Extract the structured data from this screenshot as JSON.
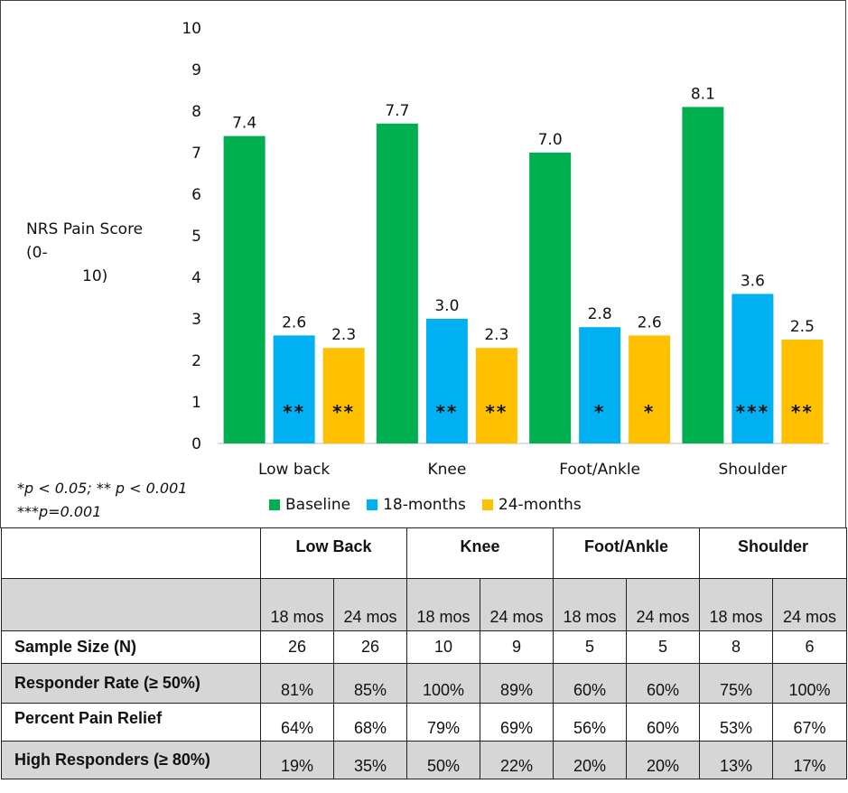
{
  "chart_data": {
    "type": "bar",
    "ylabel": "NRS Pain Score (0-10)",
    "ylabel_lines": [
      "NRS Pain Score (0-",
      "10)"
    ],
    "ylim": [
      0,
      10
    ],
    "yticks": [
      "0",
      "1",
      "2",
      "3",
      "4",
      "5",
      "6",
      "7",
      "8",
      "9",
      "10"
    ],
    "categories": [
      "Low back",
      "Knee",
      "Foot/Ankle",
      "Shoulder"
    ],
    "series": [
      {
        "name": "Baseline",
        "color": "#00b050",
        "values": [
          7.4,
          7.7,
          7.0,
          8.1
        ],
        "labels": [
          "7.4",
          "7.7",
          "7.0",
          "8.1"
        ],
        "markers": [
          "",
          "",
          "",
          ""
        ]
      },
      {
        "name": "18-months",
        "color": "#00b0f0",
        "values": [
          2.6,
          3.0,
          2.8,
          3.6
        ],
        "labels": [
          "2.6",
          "3.0",
          "2.8",
          "3.6"
        ],
        "markers": [
          "**",
          "**",
          "*",
          "***"
        ]
      },
      {
        "name": "24-months",
        "color": "#ffc000",
        "values": [
          2.3,
          2.3,
          2.6,
          2.5
        ],
        "labels": [
          "2.3",
          "2.3",
          "2.6",
          "2.5"
        ],
        "markers": [
          "**",
          "**",
          "*",
          "**"
        ]
      }
    ],
    "legend_position": "bottom",
    "grid": false
  },
  "footnotes": [
    "*p < 0.05; ** p < 0.001",
    "***p=0.001"
  ],
  "table": {
    "groups": [
      "Low Back",
      "Knee",
      "Foot/Ankle",
      "Shoulder"
    ],
    "subheaders": [
      "18 mos",
      "24 mos",
      "18 mos",
      "24 mos",
      "18 mos",
      "24 mos",
      "18 mos",
      "24 mos"
    ],
    "rows": [
      {
        "label": "Sample Size (N)",
        "values": [
          "26",
          "26",
          "10",
          "9",
          "5",
          "5",
          "8",
          "6"
        ]
      },
      {
        "label": "Responder Rate  (≥ 50%)",
        "values": [
          "81%",
          "85%",
          "100%",
          "89%",
          "60%",
          "60%",
          "75%",
          "100%"
        ]
      },
      {
        "label": "Percent Pain Relief",
        "values": [
          "64%",
          "68%",
          "79%",
          "69%",
          "56%",
          "60%",
          "53%",
          "67%"
        ]
      },
      {
        "label": "High Responders (≥ 80%)",
        "values": [
          "19%",
          "35%",
          "50%",
          "22%",
          "20%",
          "20%",
          "13%",
          "17%"
        ]
      }
    ]
  }
}
